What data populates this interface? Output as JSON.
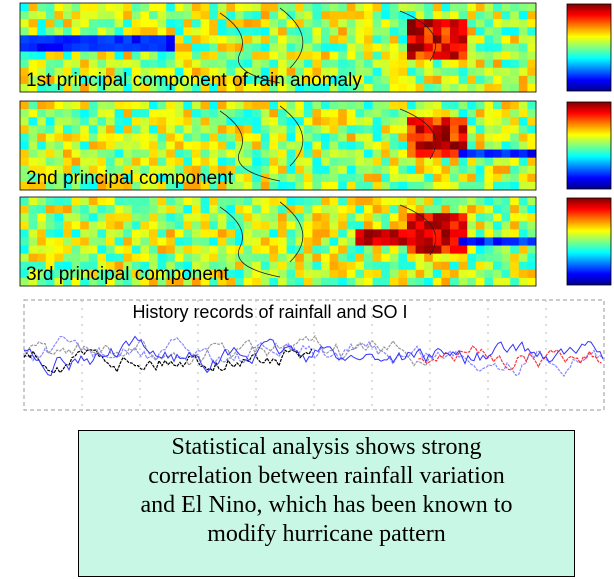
{
  "panels": [
    {
      "label": "1st principal component of rain anomaly"
    },
    {
      "label": "2nd principal component"
    },
    {
      "label": "3rd principal component"
    }
  ],
  "timeseries": {
    "title": "History records of rainfall and SO I"
  },
  "caption": {
    "lines": [
      "Statistical analysis shows strong",
      "correlation between rainfall variation",
      "and El Nino, which has been known to",
      "modify hurricane pattern"
    ]
  }
}
